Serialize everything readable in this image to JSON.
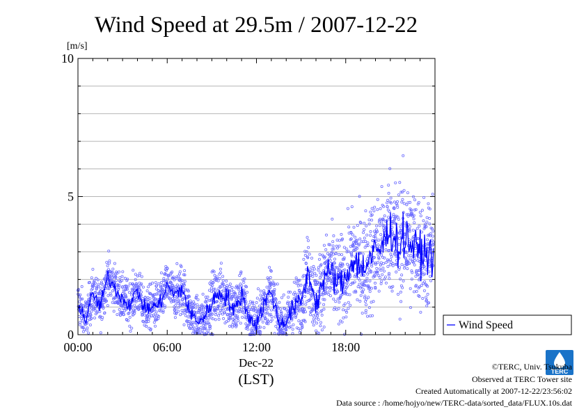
{
  "chart_data": {
    "type": "scatter",
    "title": "Wind Speed at 29.5m / 2007-12-22",
    "ylabel": "[m/s]",
    "xlabel": "(LST)",
    "date_label": "Dec-22",
    "ylim": [
      0,
      10
    ],
    "xlim": [
      "00:00",
      "24:00"
    ],
    "x_ticks": [
      "00:00",
      "06:00",
      "12:00",
      "18:00"
    ],
    "y_ticks": [
      0,
      5,
      10
    ],
    "grid": true,
    "legend_position": "right",
    "series": [
      {
        "name": "Wind Speed",
        "color": "#0000ff",
        "point_color": "#6b6bff",
        "mean_x_hours": [
          0.0,
          0.5,
          1.0,
          1.5,
          2.0,
          2.5,
          3.0,
          3.5,
          4.0,
          4.5,
          5.0,
          5.5,
          6.0,
          6.5,
          7.0,
          7.5,
          8.0,
          8.5,
          9.0,
          9.5,
          10.0,
          10.5,
          11.0,
          11.5,
          12.0,
          12.5,
          13.0,
          13.5,
          14.0,
          14.5,
          15.0,
          15.5,
          16.0,
          16.5,
          17.0,
          17.5,
          18.0,
          18.5,
          19.0,
          19.5,
          20.0,
          20.5,
          21.0,
          21.5,
          22.0,
          22.5,
          23.0,
          23.5
        ],
        "mean_values": [
          1.2,
          0.5,
          1.5,
          1.0,
          2.1,
          1.7,
          1.3,
          1.1,
          1.6,
          0.9,
          1.0,
          1.1,
          1.8,
          1.4,
          1.7,
          0.8,
          0.5,
          0.6,
          1.2,
          1.5,
          1.4,
          0.8,
          1.5,
          0.6,
          0.4,
          1.1,
          1.6,
          0.4,
          0.5,
          1.0,
          1.2,
          2.3,
          1.1,
          2.0,
          2.3,
          1.8,
          2.0,
          2.8,
          2.4,
          2.6,
          3.0,
          3.2,
          3.9,
          3.2,
          3.6,
          3.2,
          3.0,
          2.9
        ],
        "spread_values": [
          0.4,
          0.4,
          0.4,
          0.4,
          0.4,
          0.4,
          0.4,
          0.4,
          0.4,
          0.4,
          0.4,
          0.4,
          0.4,
          0.4,
          0.5,
          0.4,
          0.4,
          0.4,
          0.5,
          0.5,
          0.5,
          0.5,
          0.5,
          0.4,
          0.4,
          0.5,
          0.5,
          0.4,
          0.4,
          0.5,
          0.5,
          0.7,
          0.7,
          0.7,
          0.8,
          0.8,
          0.8,
          0.9,
          0.9,
          1.0,
          1.0,
          1.0,
          1.1,
          1.1,
          1.1,
          1.1,
          1.0,
          1.0
        ]
      }
    ]
  },
  "footer": {
    "copyright": "©TERC, Univ. Tsukuba",
    "observed": "Observed at TERC Tower site",
    "created": "Created Automatically at 2007-12-22/23:56:02",
    "source": "Data source : /home/hojyo/new/TERC-data/sorted_data/FLUX.10s.dat",
    "logo_text": "TERC",
    "logo_icon": "terc-logo-icon"
  }
}
